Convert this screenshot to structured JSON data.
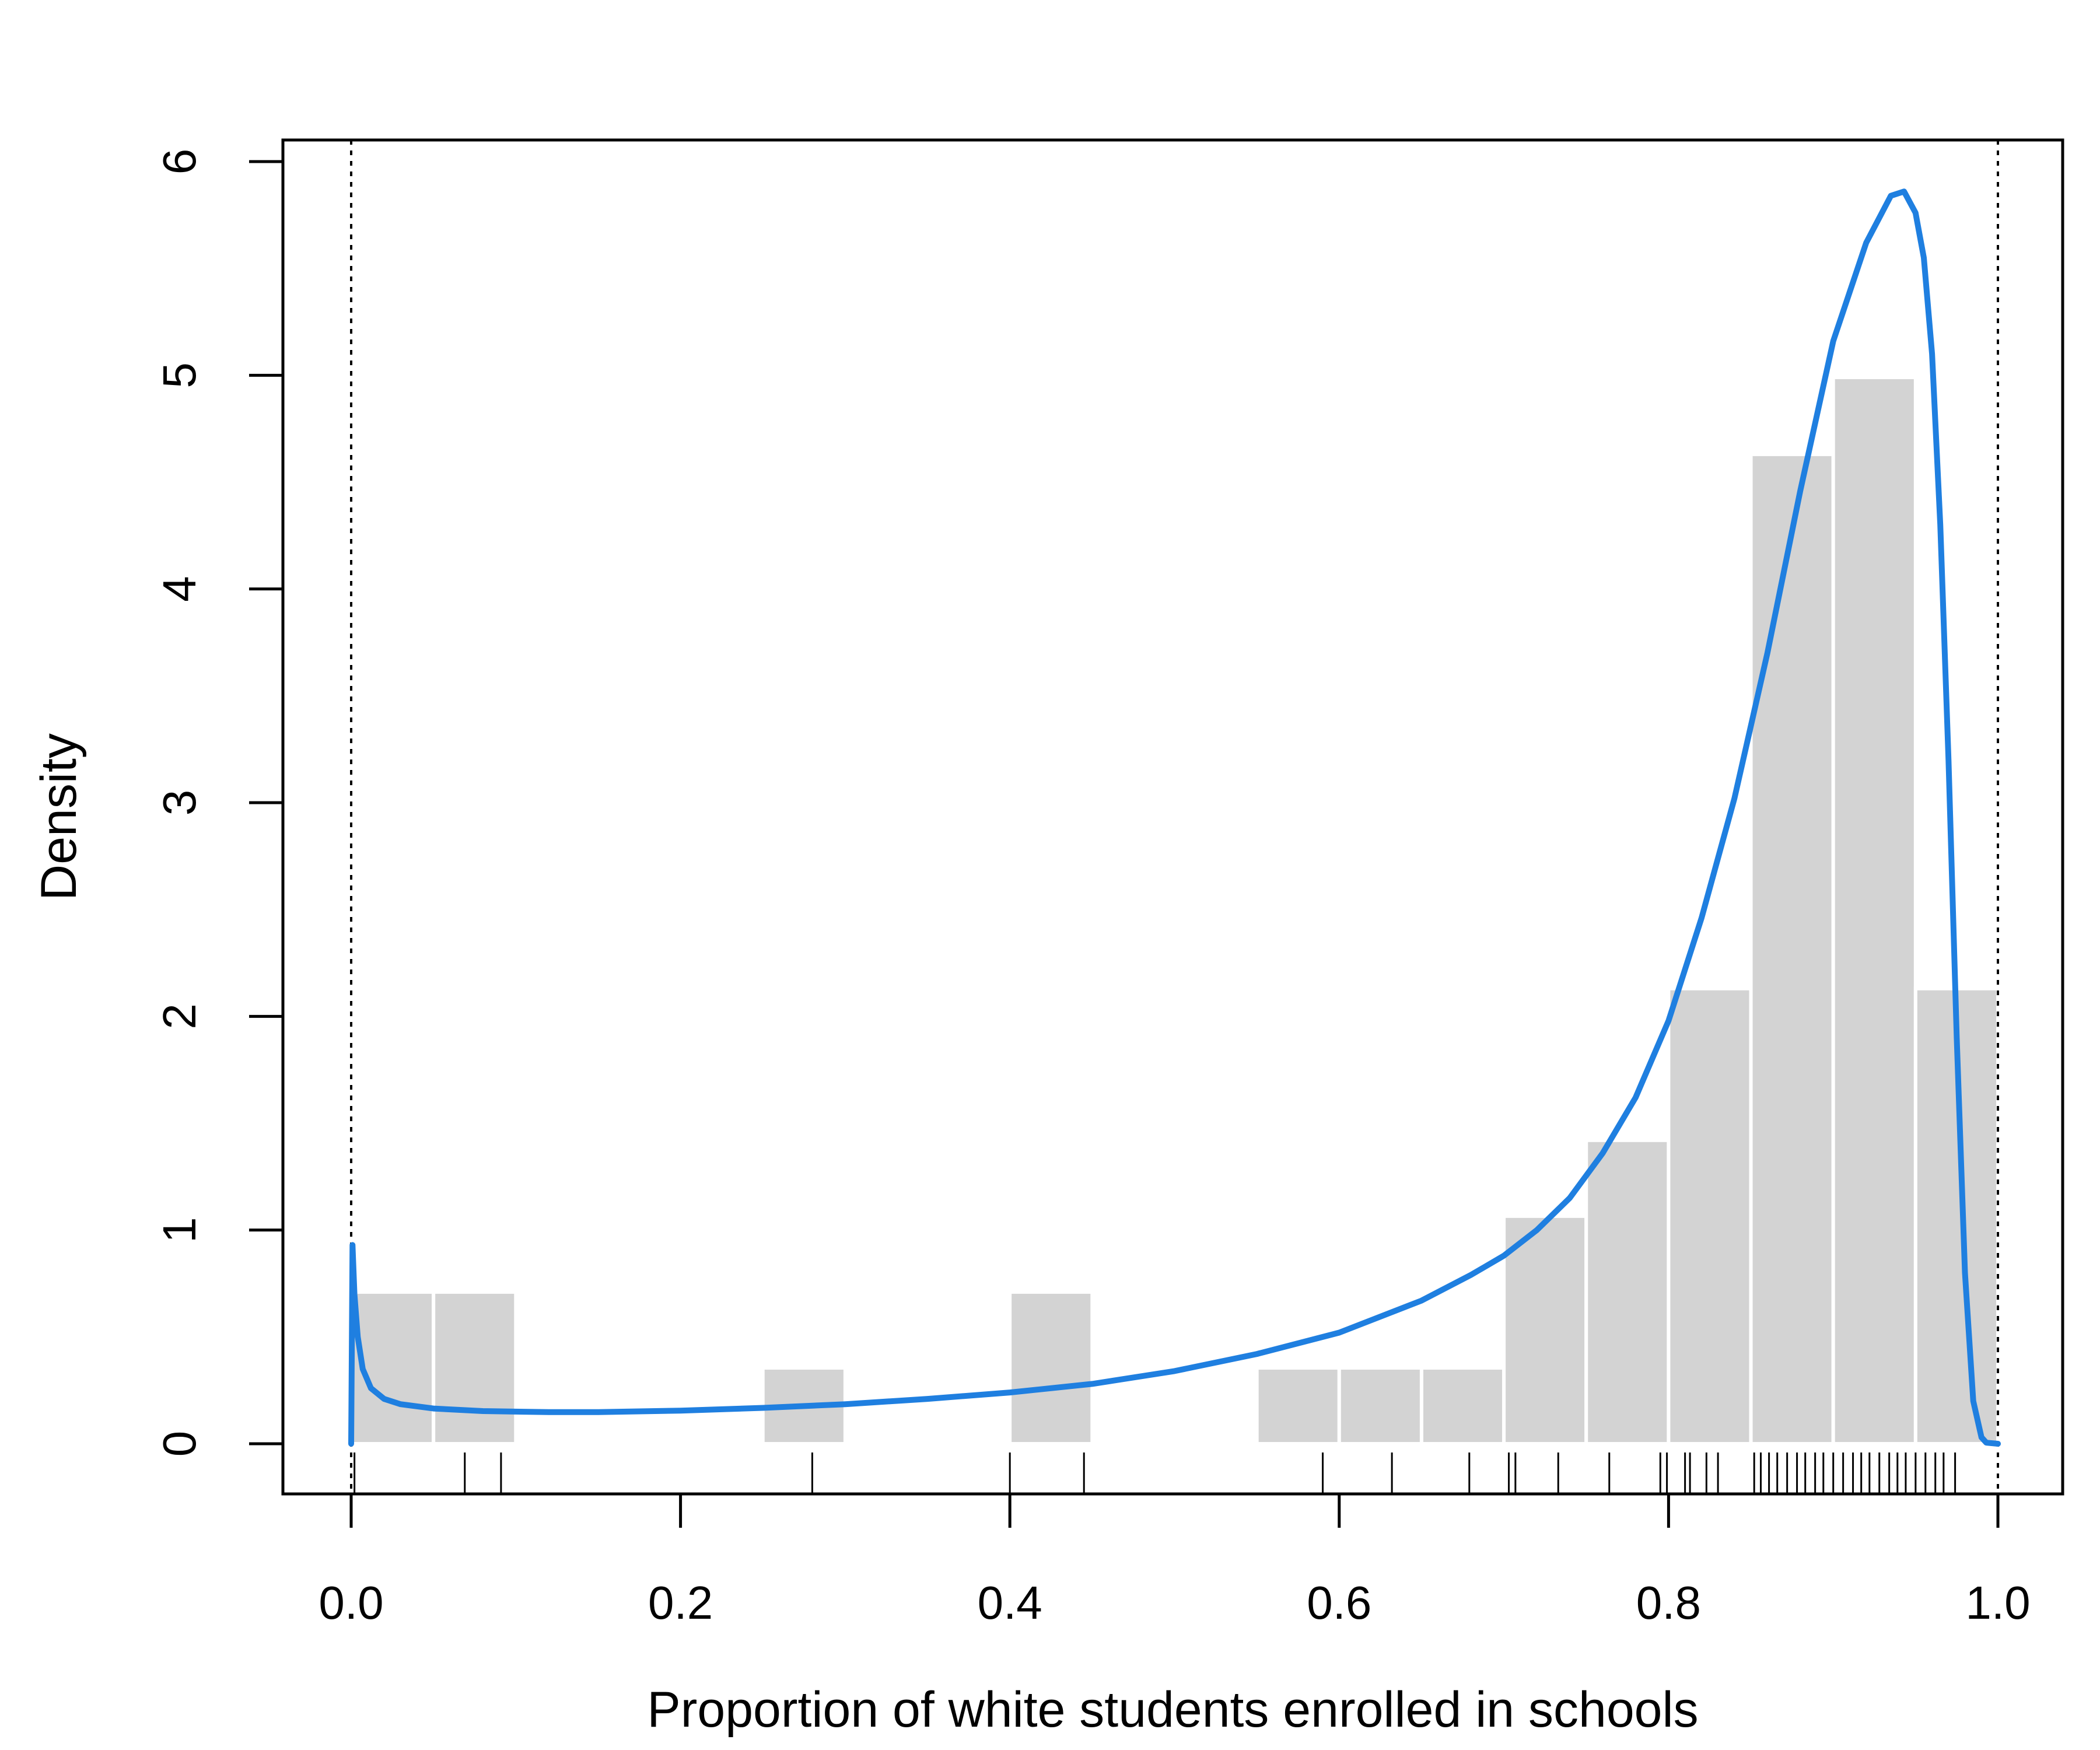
{
  "chart_data": {
    "type": "histogram",
    "xlabel": "Proportion of white students enrolled in schools",
    "ylabel": "Density",
    "xlim": [
      -0.04,
      1.04
    ],
    "ylim": [
      -0.23,
      6.1
    ],
    "x_ticks": [
      "0.0",
      "0.2",
      "0.4",
      "0.6",
      "0.8",
      "1.0"
    ],
    "x_tick_values": [
      0.0,
      0.2,
      0.4,
      0.6,
      0.8,
      1.0
    ],
    "y_ticks": [
      "0",
      "1",
      "2",
      "3",
      "4",
      "5",
      "6"
    ],
    "y_tick_values": [
      0,
      1,
      2,
      3,
      4,
      5,
      6
    ],
    "bin_width": 0.05,
    "bins": [
      {
        "x0": 0.0,
        "density": 0.71
      },
      {
        "x0": 0.05,
        "density": 0.71
      },
      {
        "x0": 0.25,
        "density": 0.355
      },
      {
        "x0": 0.4,
        "density": 0.71
      },
      {
        "x0": 0.55,
        "density": 0.355
      },
      {
        "x0": 0.6,
        "density": 0.355
      },
      {
        "x0": 0.65,
        "density": 0.355
      },
      {
        "x0": 0.7,
        "density": 1.065
      },
      {
        "x0": 0.75,
        "density": 1.42
      },
      {
        "x0": 0.8,
        "density": 2.13
      },
      {
        "x0": 0.85,
        "density": 4.63
      },
      {
        "x0": 0.9,
        "density": 4.99
      },
      {
        "x0": 0.95,
        "density": 2.13
      }
    ],
    "bar_color": "#d3d3d3",
    "density_curve": {
      "color": "#1f7fe0",
      "points": [
        [
          0.0,
          0.0
        ],
        [
          0.0008,
          0.93
        ],
        [
          0.002,
          0.7
        ],
        [
          0.004,
          0.5
        ],
        [
          0.007,
          0.35
        ],
        [
          0.012,
          0.26
        ],
        [
          0.02,
          0.21
        ],
        [
          0.03,
          0.185
        ],
        [
          0.05,
          0.165
        ],
        [
          0.08,
          0.153
        ],
        [
          0.12,
          0.148
        ],
        [
          0.15,
          0.148
        ],
        [
          0.2,
          0.155
        ],
        [
          0.25,
          0.168
        ],
        [
          0.3,
          0.185
        ],
        [
          0.35,
          0.21
        ],
        [
          0.4,
          0.24
        ],
        [
          0.45,
          0.28
        ],
        [
          0.5,
          0.34
        ],
        [
          0.55,
          0.42
        ],
        [
          0.6,
          0.52
        ],
        [
          0.65,
          0.67
        ],
        [
          0.68,
          0.79
        ],
        [
          0.7,
          0.88
        ],
        [
          0.72,
          1.0
        ],
        [
          0.74,
          1.15
        ],
        [
          0.76,
          1.36
        ],
        [
          0.78,
          1.62
        ],
        [
          0.8,
          1.98
        ],
        [
          0.82,
          2.46
        ],
        [
          0.84,
          3.02
        ],
        [
          0.86,
          3.7
        ],
        [
          0.88,
          4.46
        ],
        [
          0.9,
          5.16
        ],
        [
          0.92,
          5.62
        ],
        [
          0.935,
          5.84
        ],
        [
          0.943,
          5.86
        ],
        [
          0.95,
          5.76
        ],
        [
          0.955,
          5.55
        ],
        [
          0.96,
          5.1
        ],
        [
          0.965,
          4.3
        ],
        [
          0.97,
          3.2
        ],
        [
          0.975,
          1.9
        ],
        [
          0.98,
          0.8
        ],
        [
          0.985,
          0.2
        ],
        [
          0.99,
          0.03
        ],
        [
          0.993,
          0.005
        ],
        [
          1.0,
          0.0
        ]
      ]
    },
    "reference_lines": {
      "x": [
        0.0,
        1.0
      ],
      "style": "dotted"
    },
    "rug": [
      0.002,
      0.069,
      0.091,
      0.28,
      0.4,
      0.445,
      0.59,
      0.632,
      0.679,
      0.703,
      0.707,
      0.733,
      0.764,
      0.795,
      0.799,
      0.81,
      0.813,
      0.823,
      0.83,
      0.852,
      0.856,
      0.861,
      0.866,
      0.872,
      0.878,
      0.883,
      0.889,
      0.894,
      0.9,
      0.906,
      0.912,
      0.917,
      0.922,
      0.928,
      0.934,
      0.939,
      0.944,
      0.95,
      0.956,
      0.962,
      0.967,
      0.974
    ],
    "legend": "none",
    "grid": false
  }
}
